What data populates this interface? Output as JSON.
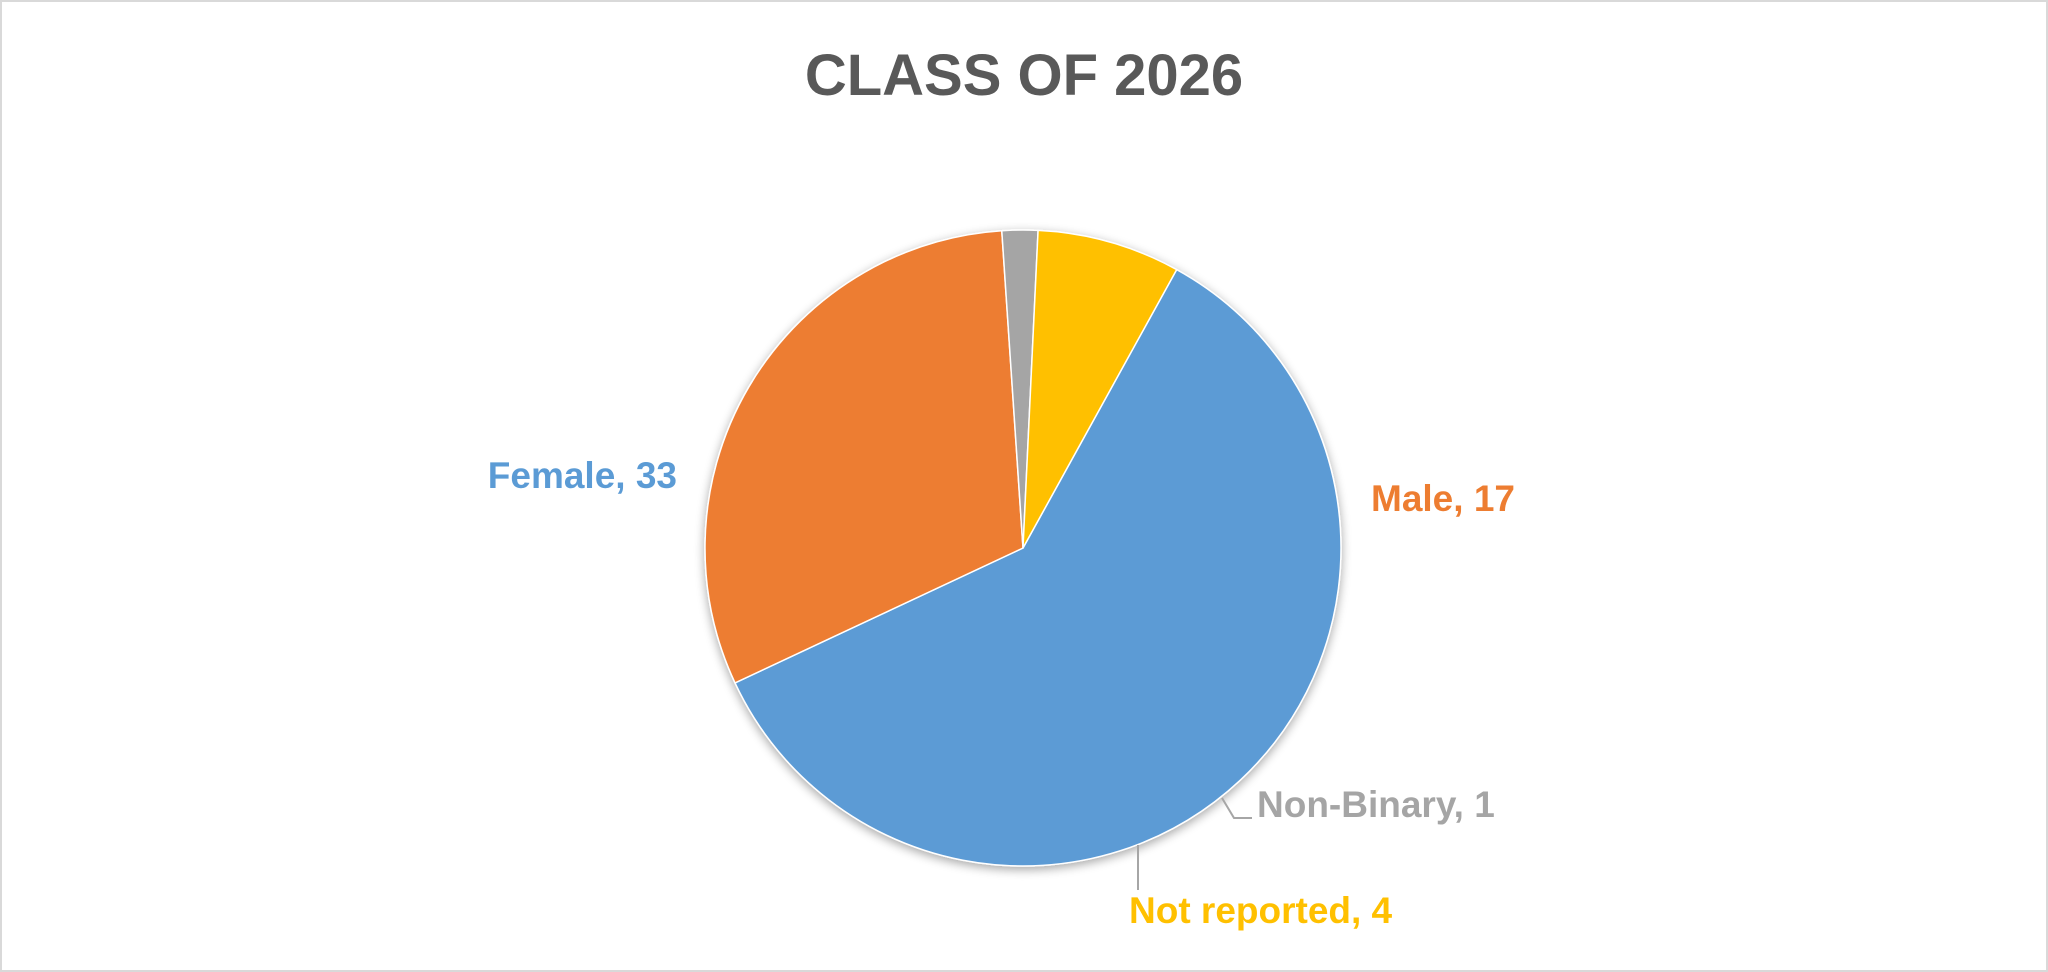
{
  "chart_data": {
    "type": "pie",
    "title": "CLASS OF 2026",
    "slices": [
      {
        "name": "Female",
        "value": 33,
        "color": "#5B9BD5",
        "label": "Female, 33"
      },
      {
        "name": "Male",
        "value": 17,
        "color": "#ED7D31",
        "label": "Male, 17"
      },
      {
        "name": "Non-Binary",
        "value": 1,
        "color": "#A5A5A5",
        "label": "Non-Binary, 1"
      },
      {
        "name": "Not reported",
        "value": 4,
        "color": "#FFC000",
        "label": "Not reported, 4"
      }
    ],
    "legend": "none",
    "data_labels": "outside"
  }
}
